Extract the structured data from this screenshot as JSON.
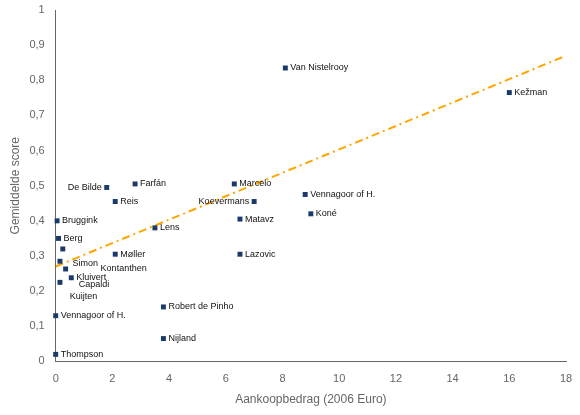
{
  "chart_data": {
    "type": "scatter",
    "xlabel": "Aankoopbedrag (2006 Euro)",
    "ylabel": "Gemiddelde score",
    "xlim": [
      0,
      18
    ],
    "ylim": [
      0,
      1
    ],
    "xticks": [
      0,
      2,
      4,
      6,
      8,
      10,
      12,
      14,
      16,
      18
    ],
    "yticks": [
      0,
      {
        "value": 0.1,
        "label": "0,1"
      },
      {
        "value": 0.2,
        "label": "0,2"
      },
      {
        "value": 0.3,
        "label": "0,3"
      },
      {
        "value": 0.4,
        "label": "0,4"
      },
      {
        "value": 0.5,
        "label": "0,5"
      },
      {
        "value": 0.6,
        "label": "0,6"
      },
      {
        "value": 0.7,
        "label": "0,7"
      },
      {
        "value": 0.8,
        "label": "0,8"
      },
      {
        "value": 0.9,
        "label": "0,9"
      },
      1
    ],
    "grid": false,
    "series": [
      {
        "type": "scatter",
        "color": "#1B3A6B",
        "marker": "square",
        "x": [
          0.0,
          0.0,
          0.05,
          0.1,
          0.25,
          0.15,
          0.35,
          0.15,
          0.55,
          1.8,
          2.1,
          2.1,
          2.8,
          3.5,
          3.8,
          3.8,
          6.3,
          6.5,
          7.0,
          6.5,
          8.1,
          8.8,
          9.0,
          16.0
        ],
        "values": [
          0.02,
          0.13,
          0.4,
          0.35,
          0.32,
          0.285,
          0.263,
          0.225,
          0.238,
          0.495,
          0.455,
          0.305,
          0.505,
          0.38,
          0.065,
          0.155,
          0.505,
          0.405,
          0.455,
          0.305,
          0.835,
          0.475,
          0.42,
          0.765
        ]
      },
      {
        "type": "line",
        "color": "#FFA500",
        "line_style": "dashdot",
        "x": [
          0,
          18
        ],
        "values": [
          0.27,
          0.87
        ]
      }
    ],
    "annotations": [
      {
        "x": 0.0,
        "y": 0.02,
        "text": "Thompson"
      },
      {
        "x": 0.0,
        "y": 0.13,
        "text": "Vennagoor of H."
      },
      {
        "x": 0.05,
        "y": 0.4,
        "text": "Bruggink"
      },
      {
        "x": 0.1,
        "y": 0.35,
        "text": "Berg"
      },
      {
        "x": 0.25,
        "y": 0.32,
        "text": "Simon"
      },
      {
        "x": 0.15,
        "y": 0.285,
        "text": "Capaldi"
      },
      {
        "x": 0.35,
        "y": 0.263,
        "text": "Kontanthen"
      },
      {
        "x": 0.15,
        "y": 0.225,
        "text": "Kuijten"
      },
      {
        "x": 0.55,
        "y": 0.238,
        "text": "Kluivert"
      },
      {
        "x": 1.8,
        "y": 0.495,
        "text": "De Bilde"
      },
      {
        "x": 2.1,
        "y": 0.455,
        "text": "Reis"
      },
      {
        "x": 2.1,
        "y": 0.305,
        "text": "Møller"
      },
      {
        "x": 2.8,
        "y": 0.505,
        "text": "Farfán"
      },
      {
        "x": 3.5,
        "y": 0.38,
        "text": "Lens"
      },
      {
        "x": 3.8,
        "y": 0.065,
        "text": "Nijland"
      },
      {
        "x": 3.8,
        "y": 0.155,
        "text": "Robert de Pinho"
      },
      {
        "x": 6.3,
        "y": 0.505,
        "text": "Marcelo"
      },
      {
        "x": 6.5,
        "y": 0.405,
        "text": "Matavz"
      },
      {
        "x": 7.0,
        "y": 0.455,
        "text": "Koevermans"
      },
      {
        "x": 6.5,
        "y": 0.305,
        "text": "Lazovic"
      },
      {
        "x": 8.1,
        "y": 0.835,
        "text": "Van Nistelrooy"
      },
      {
        "x": 8.8,
        "y": 0.475,
        "text": "Vennagoor of H."
      },
      {
        "x": 9.0,
        "y": 0.42,
        "text": "Koné"
      },
      {
        "x": 16.0,
        "y": 0.765,
        "text": "Kežman"
      }
    ]
  }
}
